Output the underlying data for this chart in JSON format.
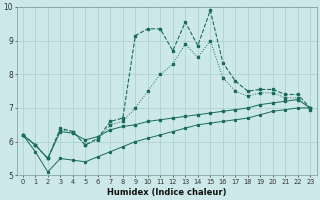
{
  "title": "",
  "xlabel": "Humidex (Indice chaleur)",
  "ylabel": "",
  "x": [
    0,
    1,
    2,
    3,
    4,
    5,
    6,
    7,
    8,
    9,
    10,
    11,
    12,
    13,
    14,
    15,
    16,
    17,
    18,
    19,
    20,
    21,
    22,
    23
  ],
  "line1": [
    6.2,
    5.9,
    5.5,
    6.4,
    6.3,
    5.9,
    6.1,
    6.6,
    6.7,
    9.15,
    9.35,
    9.35,
    8.7,
    9.55,
    8.85,
    9.9,
    8.35,
    7.8,
    7.5,
    7.55,
    7.55,
    7.4,
    7.4,
    7.0
  ],
  "line2": [
    6.2,
    5.9,
    5.5,
    6.35,
    6.3,
    5.9,
    6.05,
    6.5,
    6.6,
    7.0,
    7.5,
    8.0,
    8.3,
    8.9,
    8.5,
    9.0,
    7.9,
    7.5,
    7.35,
    7.45,
    7.45,
    7.3,
    7.3,
    6.95
  ],
  "line3": [
    6.2,
    5.9,
    5.5,
    6.3,
    6.25,
    6.05,
    6.15,
    6.35,
    6.45,
    6.5,
    6.6,
    6.65,
    6.7,
    6.75,
    6.8,
    6.85,
    6.9,
    6.95,
    7.0,
    7.1,
    7.15,
    7.2,
    7.25,
    7.0
  ],
  "line4": [
    6.2,
    5.7,
    5.1,
    5.5,
    5.45,
    5.4,
    5.55,
    5.7,
    5.85,
    6.0,
    6.1,
    6.2,
    6.3,
    6.4,
    6.5,
    6.55,
    6.6,
    6.65,
    6.7,
    6.8,
    6.9,
    6.95,
    7.0,
    7.0
  ],
  "line_color": "#1a6b5a",
  "bg_color": "#cce8e8",
  "grid_color": "#aacece",
  "ylim": [
    5.0,
    10.0
  ],
  "xlim": [
    -0.5,
    23.5
  ],
  "yticks": [
    5,
    6,
    7,
    8,
    9,
    10
  ],
  "xticks": [
    0,
    1,
    2,
    3,
    4,
    5,
    6,
    7,
    8,
    9,
    10,
    11,
    12,
    13,
    14,
    15,
    16,
    17,
    18,
    19,
    20,
    21,
    22,
    23
  ]
}
